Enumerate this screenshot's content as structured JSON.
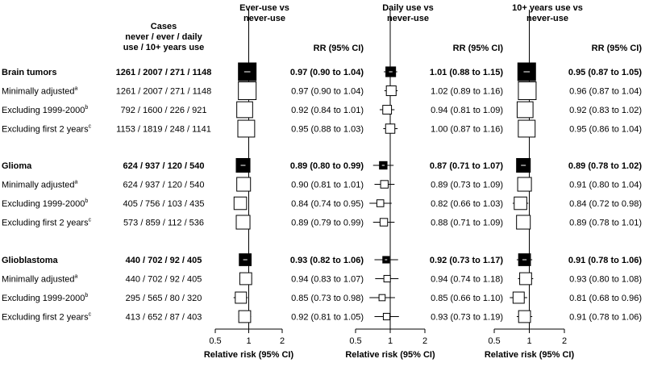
{
  "chart_data": {
    "type": "forest",
    "header": {
      "cases_label": [
        "Cases",
        "never / ever / daily",
        "use / 10+ years use"
      ],
      "ci_label": "RR (95% CI)",
      "xlabel": "Relative risk (95% CI)"
    },
    "x_scale": "log",
    "xlim": [
      0.5,
      2
    ],
    "xticks": [
      {
        "value": 0.5,
        "label": "0.5"
      },
      {
        "value": 1,
        "label": "1"
      },
      {
        "value": 2,
        "label": "2"
      }
    ],
    "reference_line": 1,
    "panels": [
      {
        "title": [
          "Ever-use vs",
          "never-use"
        ]
      },
      {
        "title": [
          "Daily use vs",
          "never-use"
        ]
      },
      {
        "title": [
          "10+ years use vs",
          "never-use"
        ]
      }
    ],
    "groups": [
      {
        "rows": [
          {
            "label": "Brain tumors",
            "sup": "",
            "bold": true,
            "cases": "1261 / 2007 / 271 / 1148",
            "weight": 1.0,
            "values": [
              {
                "rr": 0.97,
                "lo": 0.9,
                "hi": 1.04,
                "text": "0.97 (0.90 to 1.04)"
              },
              {
                "rr": 1.01,
                "lo": 0.88,
                "hi": 1.15,
                "text": "1.01 (0.88 to 1.15)"
              },
              {
                "rr": 0.95,
                "lo": 0.87,
                "hi": 1.05,
                "text": "0.95 (0.87 to 1.05)"
              }
            ]
          },
          {
            "label": "Minimally adjusted",
            "sup": "a",
            "bold": false,
            "cases": "1261 / 2007 / 271 / 1148",
            "weight": 1.0,
            "values": [
              {
                "rr": 0.97,
                "lo": 0.9,
                "hi": 1.04,
                "text": "0.97 (0.90 to 1.04)"
              },
              {
                "rr": 1.02,
                "lo": 0.89,
                "hi": 1.16,
                "text": "1.02 (0.89 to 1.16)"
              },
              {
                "rr": 0.96,
                "lo": 0.87,
                "hi": 1.04,
                "text": "0.96 (0.87 to 1.04)"
              }
            ]
          },
          {
            "label": "Excluding 1999-2000",
            "sup": "b",
            "bold": false,
            "cases": "792 / 1600 / 226 / 921",
            "weight": 0.8,
            "values": [
              {
                "rr": 0.92,
                "lo": 0.84,
                "hi": 1.01,
                "text": "0.92 (0.84 to 1.01)"
              },
              {
                "rr": 0.94,
                "lo": 0.81,
                "hi": 1.09,
                "text": "0.94 (0.81 to 1.09)"
              },
              {
                "rr": 0.92,
                "lo": 0.83,
                "hi": 1.02,
                "text": "0.92 (0.83 to 1.02)"
              }
            ]
          },
          {
            "label": "Excluding first 2 years",
            "sup": "c",
            "bold": false,
            "cases": "1153 / 1819 / 248 / 1141",
            "weight": 0.9,
            "values": [
              {
                "rr": 0.95,
                "lo": 0.88,
                "hi": 1.03,
                "text": "0.95 (0.88 to 1.03)"
              },
              {
                "rr": 1.0,
                "lo": 0.87,
                "hi": 1.16,
                "text": "1.00 (0.87 to 1.16)"
              },
              {
                "rr": 0.95,
                "lo": 0.86,
                "hi": 1.04,
                "text": "0.95 (0.86 to 1.04)"
              }
            ]
          }
        ]
      },
      {
        "rows": [
          {
            "label": "Glioma",
            "sup": "",
            "bold": true,
            "cases": "624 / 937 / 120 / 540",
            "weight": 0.6,
            "values": [
              {
                "rr": 0.89,
                "lo": 0.8,
                "hi": 0.99,
                "text": "0.89 (0.80 to 0.99)"
              },
              {
                "rr": 0.87,
                "lo": 0.71,
                "hi": 1.07,
                "text": "0.87 (0.71 to 1.07)"
              },
              {
                "rr": 0.89,
                "lo": 0.78,
                "hi": 1.02,
                "text": "0.89 (0.78 to 1.02)"
              }
            ]
          },
          {
            "label": "Minimally adjusted",
            "sup": "a",
            "bold": false,
            "cases": "624 / 937 / 120 / 540",
            "weight": 0.6,
            "values": [
              {
                "rr": 0.9,
                "lo": 0.81,
                "hi": 1.01,
                "text": "0.90 (0.81 to 1.01)"
              },
              {
                "rr": 0.89,
                "lo": 0.73,
                "hi": 1.09,
                "text": "0.89 (0.73 to 1.09)"
              },
              {
                "rr": 0.91,
                "lo": 0.8,
                "hi": 1.04,
                "text": "0.91 (0.80 to 1.04)"
              }
            ]
          },
          {
            "label": "Excluding 1999-2000",
            "sup": "b",
            "bold": false,
            "cases": "405 / 756 / 103 / 435",
            "weight": 0.5,
            "values": [
              {
                "rr": 0.84,
                "lo": 0.74,
                "hi": 0.95,
                "text": "0.84 (0.74 to 0.95)"
              },
              {
                "rr": 0.82,
                "lo": 0.66,
                "hi": 1.03,
                "text": "0.82 (0.66 to 1.03)"
              },
              {
                "rr": 0.84,
                "lo": 0.72,
                "hi": 0.98,
                "text": "0.84 (0.72 to 0.98)"
              }
            ]
          },
          {
            "label": "Excluding first 2 years",
            "sup": "c",
            "bold": false,
            "cases": "573 / 859 / 112 / 536",
            "weight": 0.6,
            "values": [
              {
                "rr": 0.89,
                "lo": 0.79,
                "hi": 0.99,
                "text": "0.89 (0.79 to 0.99)"
              },
              {
                "rr": 0.88,
                "lo": 0.71,
                "hi": 1.09,
                "text": "0.88 (0.71 to 1.09)"
              },
              {
                "rr": 0.89,
                "lo": 0.78,
                "hi": 1.01,
                "text": "0.89 (0.78 to 1.01)"
              }
            ]
          }
        ]
      },
      {
        "rows": [
          {
            "label": "Glioblastoma",
            "sup": "",
            "bold": true,
            "cases": "440 / 702 / 92 / 405",
            "weight": 0.45,
            "values": [
              {
                "rr": 0.93,
                "lo": 0.82,
                "hi": 1.06,
                "text": "0.93 (0.82 to 1.06)"
              },
              {
                "rr": 0.92,
                "lo": 0.73,
                "hi": 1.17,
                "text": "0.92 (0.73 to 1.17)"
              },
              {
                "rr": 0.91,
                "lo": 0.78,
                "hi": 1.06,
                "text": "0.91 (0.78 to 1.06)"
              }
            ]
          },
          {
            "label": "Minimally adjusted",
            "sup": "a",
            "bold": false,
            "cases": "440 / 702 / 92 / 405",
            "weight": 0.45,
            "values": [
              {
                "rr": 0.94,
                "lo": 0.83,
                "hi": 1.07,
                "text": "0.94 (0.83 to 1.07)"
              },
              {
                "rr": 0.94,
                "lo": 0.74,
                "hi": 1.18,
                "text": "0.94 (0.74 to 1.18)"
              },
              {
                "rr": 0.93,
                "lo": 0.8,
                "hi": 1.08,
                "text": "0.93 (0.80 to 1.08)"
              }
            ]
          },
          {
            "label": "Excluding 1999-2000",
            "sup": "b",
            "bold": false,
            "cases": "295 / 565 / 80 / 320",
            "weight": 0.4,
            "values": [
              {
                "rr": 0.85,
                "lo": 0.73,
                "hi": 0.98,
                "text": "0.85 (0.73 to 0.98)"
              },
              {
                "rr": 0.85,
                "lo": 0.66,
                "hi": 1.1,
                "text": "0.85 (0.66 to 1.10)"
              },
              {
                "rr": 0.81,
                "lo": 0.68,
                "hi": 0.96,
                "text": "0.81 (0.68 to 0.96)"
              }
            ]
          },
          {
            "label": "Excluding first 2 years",
            "sup": "c",
            "bold": false,
            "cases": "413 / 652 / 87 / 403",
            "weight": 0.45,
            "values": [
              {
                "rr": 0.92,
                "lo": 0.81,
                "hi": 1.05,
                "text": "0.92 (0.81 to 1.05)"
              },
              {
                "rr": 0.93,
                "lo": 0.73,
                "hi": 1.19,
                "text": "0.93 (0.73 to 1.19)"
              },
              {
                "rr": 0.91,
                "lo": 0.78,
                "hi": 1.06,
                "text": "0.91 (0.78 to 1.06)"
              }
            ]
          }
        ]
      }
    ]
  }
}
